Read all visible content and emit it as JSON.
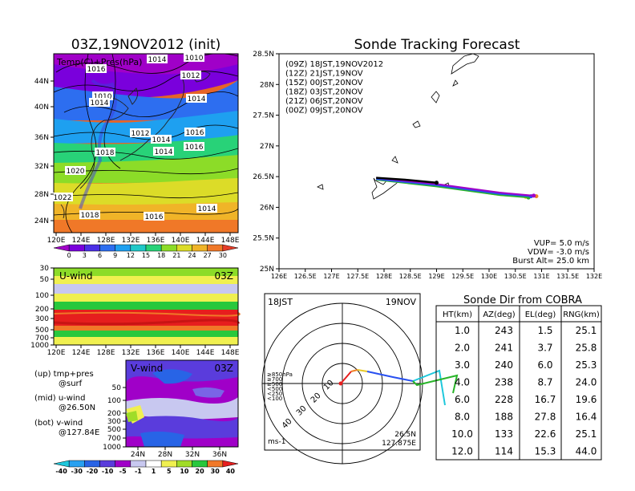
{
  "left_top": {
    "title": "03Z,19NOV2012 (init)",
    "label": "Temp(C)+Pres(hPa)",
    "lat_ticks": [
      "44N",
      "40N",
      "36N",
      "32N",
      "28N",
      "24N"
    ],
    "lon_ticks": [
      "120E",
      "124E",
      "128E",
      "132E",
      "136E",
      "140E",
      "144E",
      "148E"
    ],
    "isobar_labels": [
      "1010",
      "1014",
      "1016",
      "1012",
      "1014",
      "1010",
      "1014",
      "1012",
      "1016",
      "1014",
      "1016",
      "1018",
      "1014",
      "1020",
      "1022",
      "1018",
      "1016",
      "1014"
    ],
    "colorbar_ticks": [
      "0",
      "3",
      "6",
      "9",
      "12",
      "15",
      "18",
      "21",
      "24",
      "27",
      "30"
    ],
    "colorbar_colors": [
      "#a000c8",
      "#7a00dc",
      "#4b2fe6",
      "#2d6ef0",
      "#1ea0f0",
      "#20c8c8",
      "#28d278",
      "#8cdc28",
      "#dcdc28",
      "#f0b428",
      "#f07828",
      "#e63c28"
    ]
  },
  "u_wind": {
    "label": "U-wind",
    "time": "03Z",
    "p_ticks": [
      "30",
      "50",
      "100",
      "200",
      "300",
      "500",
      "700",
      "1000"
    ],
    "lon_ticks": [
      "120E",
      "124E",
      "128E",
      "132E",
      "136E",
      "140E",
      "144E",
      "148E"
    ]
  },
  "v_wind": {
    "label": "V-wind",
    "time": "03Z",
    "p_ticks": [
      "50",
      "100",
      "200",
      "300",
      "500",
      "700",
      "1000"
    ],
    "lat_ticks": [
      "24N",
      "28N",
      "32N",
      "36N"
    ],
    "colorbar_ticks": [
      "-40",
      "-30",
      "-20",
      "-10",
      "-5",
      "-1",
      "1",
      "5",
      "10",
      "20",
      "30",
      "40"
    ],
    "colorbar_colors": [
      "#1ec8dc",
      "#28a0f0",
      "#2864e6",
      "#5a3cdc",
      "#a000c8",
      "#c8c8f0",
      "#ffffff",
      "#f0f050",
      "#a0dc28",
      "#28c83c",
      "#f07828",
      "#e61e1e"
    ]
  },
  "notes": {
    "up": "(up) tmp+pres",
    "up2": "@surf",
    "mid": "(mid) u-wind",
    "mid2": "@26.50N",
    "bot": "(bot) v-wind",
    "bot2": "@127.84E"
  },
  "track": {
    "title": "Sonde Tracking Forecast",
    "lat_ticks": [
      "28.5N",
      "28N",
      "27.5N",
      "27N",
      "26.5N",
      "26N",
      "25.5N",
      "25N"
    ],
    "lon_ticks": [
      "126E",
      "126.5E",
      "127E",
      "127.5E",
      "128E",
      "128.5E",
      "129E",
      "129.5E",
      "130E",
      "130.5E",
      "131E",
      "131.5E",
      "132E"
    ],
    "legend": [
      {
        "text": "(09Z)  18JST,19NOV2012",
        "color": "#000000"
      },
      {
        "text": "(12Z)  21JST,19NOV",
        "color": "#a000c8"
      },
      {
        "text": "(15Z)  00JST,20NOV",
        "color": "#2850f0"
      },
      {
        "text": "(18Z)  03JST,20NOV",
        "color": "#28b428"
      },
      {
        "text": "(21Z)  06JST,20NOV",
        "color": "#f0c828"
      },
      {
        "text": "(00Z)  09JST,20NOV",
        "color": "#f08228"
      }
    ],
    "vup": "VUP=  5.0  m/s",
    "vdw": "VDW= -3.0  m/s",
    "burst": "Burst Alt=  25.0  km"
  },
  "polar": {
    "time": "18JST",
    "date": "19NOV",
    "ring_labels": [
      "10",
      "20",
      "30",
      "40"
    ],
    "levels": [
      {
        "text": "≥850hPa",
        "color": "#e61e1e"
      },
      {
        "text": "≥700",
        "color": "#f08228"
      },
      {
        "text": "≥500",
        "color": "#e6c828"
      },
      {
        "text": "<500",
        "color": "#28b428"
      },
      {
        "text": "<250",
        "color": "#1ec8dc"
      },
      {
        "text": "<100",
        "color": "#2850f0"
      }
    ],
    "units": "ms-1",
    "pos_lat": "26.5N",
    "pos_lon": "127.875E"
  },
  "table": {
    "title": "Sonde Dir from COBRA",
    "headers": [
      "HT(km)",
      "AZ(deg)",
      "EL(deg)",
      "RNG(km)"
    ],
    "rows": [
      [
        "1.0",
        "243",
        "1.5",
        "25.1"
      ],
      [
        "2.0",
        "241",
        "3.7",
        "25.8"
      ],
      [
        "3.0",
        "240",
        "6.0",
        "25.3"
      ],
      [
        "4.0",
        "238",
        "8.7",
        "24.0"
      ],
      [
        "6.0",
        "228",
        "16.7",
        "19.6"
      ],
      [
        "8.0",
        "188",
        "27.8",
        "16.4"
      ],
      [
        "10.0",
        "133",
        "22.6",
        "25.1"
      ],
      [
        "12.0",
        "114",
        "15.3",
        "44.0"
      ]
    ]
  },
  "chart_data": [
    {
      "type": "heatmap",
      "title": "03Z,19NOV2012 (init)",
      "xlabel": "",
      "ylabel": "",
      "xlim": [
        120,
        150
      ],
      "ylim": [
        22,
        48
      ],
      "legend": "Temp(C)+Pres(hPa)"
    },
    {
      "type": "heatmap",
      "title": "U-wind",
      "xlim": [
        120,
        150
      ],
      "ylim": [
        1000,
        30
      ]
    },
    {
      "type": "heatmap",
      "title": "V-wind",
      "xlim": [
        21,
        39
      ],
      "ylim": [
        1000,
        30
      ]
    },
    {
      "type": "line",
      "title": "Sonde Tracking Forecast",
      "xlim": [
        126,
        132
      ],
      "ylim": [
        25,
        28.5
      ],
      "series": [
        {
          "name": "(09Z)  18JST,19NOV2012",
          "points": [
            [
              127.85,
              26.48
            ],
            [
              128.4,
              26.45
            ],
            [
              129.0,
              26.4
            ]
          ]
        },
        {
          "name": "(12Z)  21JST,19NOV",
          "points": [
            [
              127.85,
              26.48
            ],
            [
              129.0,
              26.38
            ],
            [
              130.2,
              26.24
            ],
            [
              130.85,
              26.19
            ]
          ]
        },
        {
          "name": "(15Z)  00JST,20NOV",
          "points": [
            [
              127.85,
              26.46
            ],
            [
              129.0,
              26.36
            ],
            [
              130.2,
              26.22
            ],
            [
              130.8,
              26.18
            ]
          ]
        },
        {
          "name": "(18Z)  03JST,20NOV",
          "points": [
            [
              127.85,
              26.45
            ],
            [
              129.0,
              26.34
            ],
            [
              130.2,
              26.2
            ],
            [
              130.75,
              26.16
            ]
          ]
        },
        {
          "name": "(21Z)  06JST,20NOV",
          "points": [
            [
              127.85,
              26.45
            ],
            [
              129.0,
              26.35
            ],
            [
              130.2,
              26.2
            ],
            [
              130.7,
              26.17
            ]
          ]
        },
        {
          "name": "(00Z)  09JST,20NOV",
          "points": [
            [
              127.85,
              26.46
            ],
            [
              129.0,
              26.37
            ],
            [
              130.2,
              26.23
            ],
            [
              130.9,
              26.18
            ]
          ]
        }
      ]
    },
    {
      "type": "table",
      "title": "Sonde Dir from COBRA"
    }
  ]
}
